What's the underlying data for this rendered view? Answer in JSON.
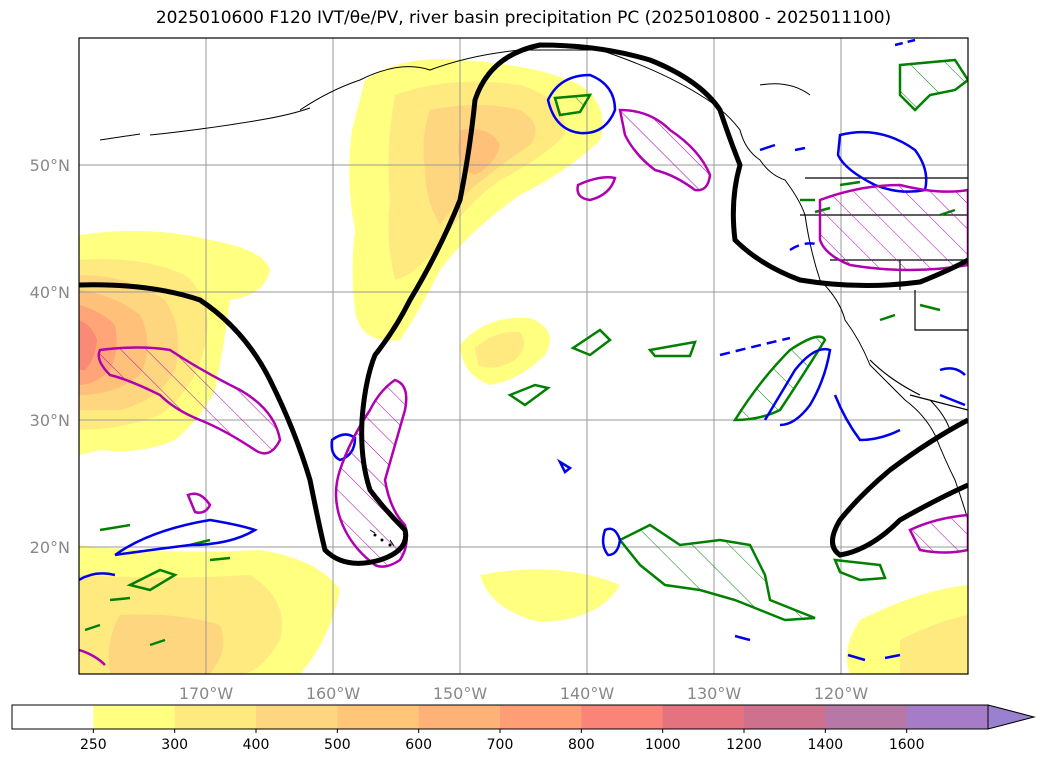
{
  "title": "2025010600 F120 IVT/θe/PV, river basin precipitation PC (2025010800 - 2025011100)",
  "map": {
    "lat_labels": [
      "50°N",
      "40°N",
      "30°N",
      "20°N"
    ],
    "lon_labels": [
      "170°W",
      "160°W",
      "150°W",
      "140°W",
      "130°W",
      "120°W"
    ],
    "legend_note": "",
    "colors": {
      "ivt_250": "#ffff80",
      "ivt_300": "#ffea80",
      "ivt_400": "#ffd680",
      "ivt_500": "#ffc07a",
      "theta_e_contour": "#000000",
      "pv_positive": "#0000ff",
      "pv_hatch_magenta": "#b000b0",
      "precip_green": "#008000"
    }
  },
  "colorbar": {
    "ticks": [
      "250",
      "300",
      "400",
      "500",
      "600",
      "700",
      "800",
      "1000",
      "1200",
      "1400",
      "1600"
    ],
    "colors": [
      "#ffffff",
      "#ffff80",
      "#ffea80",
      "#ffd680",
      "#ffc67a",
      "#ffb277",
      "#ff9e74",
      "#f98477",
      "#e5727f",
      "#cf708f",
      "#b778a8",
      "#a67cc8",
      "#9a80d0"
    ]
  }
}
